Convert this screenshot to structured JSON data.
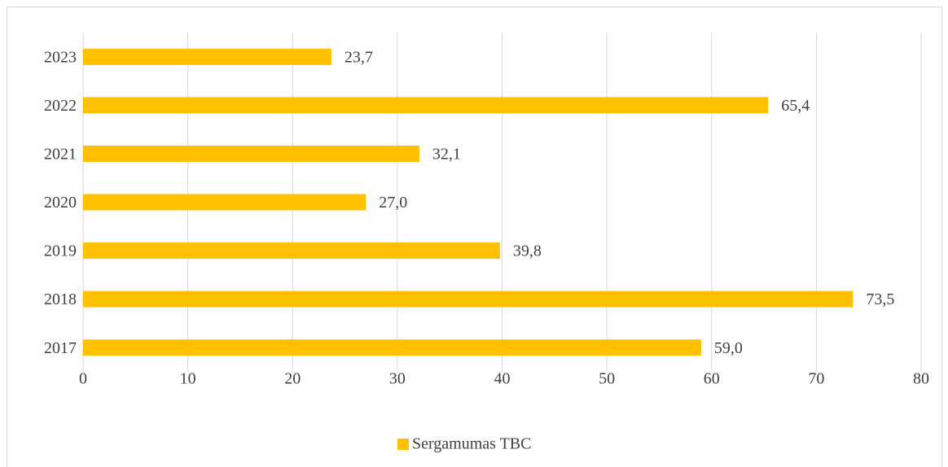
{
  "chart_data": {
    "type": "barh",
    "categories": [
      "2017",
      "2018",
      "2019",
      "2020",
      "2021",
      "2022",
      "2023"
    ],
    "series": [
      {
        "name": "Sergamumas TBC",
        "color": "#ffc000",
        "values": [
          59.0,
          73.5,
          39.8,
          27.0,
          32.1,
          65.4,
          23.7
        ],
        "value_labels": [
          "59,0",
          "73,5",
          "39,8",
          "27,0",
          "32,1",
          "65,4",
          "23,7"
        ]
      }
    ],
    "xlim": [
      0,
      80
    ],
    "xticks": [
      0,
      10,
      20,
      30,
      40,
      50,
      60,
      70,
      80
    ],
    "grid": true,
    "legend": "bottom"
  }
}
